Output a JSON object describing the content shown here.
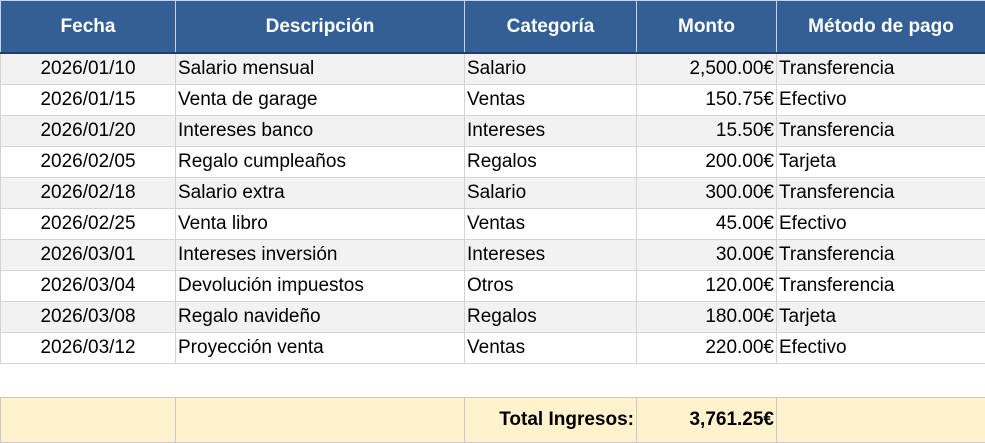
{
  "table": {
    "headers": [
      "Fecha",
      "Descripción",
      "Categoría",
      "Monto",
      "Método de pago"
    ],
    "rows": [
      [
        "2026/01/10",
        "Salario mensual",
        "Salario",
        "2,500.00€",
        "Transferencia"
      ],
      [
        "2026/01/15",
        "Venta de garage",
        "Ventas",
        "150.75€",
        "Efectivo"
      ],
      [
        "2026/01/20",
        "Intereses banco",
        "Intereses",
        "15.50€",
        "Transferencia"
      ],
      [
        "2026/02/05",
        "Regalo cumpleaños",
        "Regalos",
        "200.00€",
        "Tarjeta"
      ],
      [
        "2026/02/18",
        "Salario extra",
        "Salario",
        "300.00€",
        "Transferencia"
      ],
      [
        "2026/02/25",
        "Venta libro",
        "Ventas",
        "45.00€",
        "Efectivo"
      ],
      [
        "2026/03/01",
        "Intereses inversión",
        "Intereses",
        "30.00€",
        "Transferencia"
      ],
      [
        "2026/03/04",
        "Devolución impuestos",
        "Otros",
        "120.00€",
        "Transferencia"
      ],
      [
        "2026/03/08",
        "Regalo navideño",
        "Regalos",
        "180.00€",
        "Tarjeta"
      ],
      [
        "2026/03/12",
        "Proyección venta",
        "Ventas",
        "220.00€",
        "Efectivo"
      ]
    ]
  },
  "total": {
    "label": "Total Ingresos:",
    "value": "3,761.25€"
  },
  "colors": {
    "header_bg": "#345f96",
    "header_text": "#ffffff",
    "row_alt_bg": "#f2f2f2",
    "total_bg": "#fff2cc"
  }
}
